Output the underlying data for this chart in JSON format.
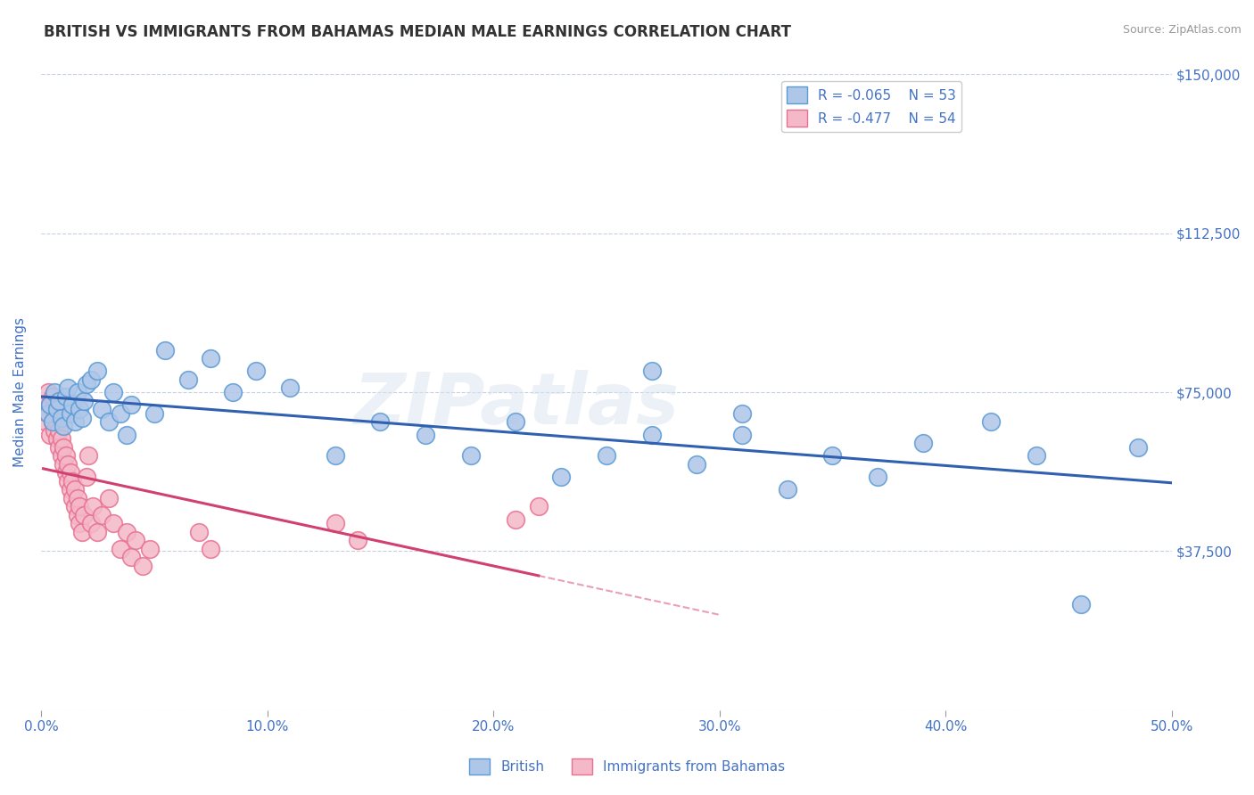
{
  "title": "BRITISH VS IMMIGRANTS FROM BAHAMAS MEDIAN MALE EARNINGS CORRELATION CHART",
  "source": "Source: ZipAtlas.com",
  "ylabel": "Median Male Earnings",
  "xlim": [
    0.0,
    0.5
  ],
  "ylim": [
    0,
    150000
  ],
  "yticks": [
    0,
    37500,
    75000,
    112500,
    150000
  ],
  "ytick_labels": [
    "",
    "$37,500",
    "$75,000",
    "$112,500",
    "$150,000"
  ],
  "xticks": [
    0.0,
    0.1,
    0.2,
    0.3,
    0.4,
    0.5
  ],
  "xtick_labels": [
    "0.0%",
    "10.0%",
    "20.0%",
    "30.0%",
    "40.0%",
    "50.0%"
  ],
  "british_color": "#aec6e8",
  "british_edge_color": "#5b9bd5",
  "bahamas_color": "#f4b8c8",
  "bahamas_edge_color": "#e87090",
  "british_line_color": "#3060b0",
  "bahamas_line_color": "#d04070",
  "british_R": -0.065,
  "british_N": 53,
  "bahamas_R": -0.477,
  "bahamas_N": 54,
  "legend_label_british": "British",
  "legend_label_bahamas": "Immigrants from Bahamas",
  "watermark": "ZIPatlas",
  "title_color": "#333333",
  "axis_label_color": "#4472C4",
  "tick_label_color": "#4472C4",
  "british_x": [
    0.003,
    0.004,
    0.005,
    0.006,
    0.007,
    0.008,
    0.009,
    0.01,
    0.011,
    0.012,
    0.013,
    0.014,
    0.015,
    0.016,
    0.017,
    0.018,
    0.019,
    0.02,
    0.022,
    0.025,
    0.027,
    0.03,
    0.032,
    0.035,
    0.038,
    0.04,
    0.05,
    0.055,
    0.065,
    0.075,
    0.085,
    0.095,
    0.11,
    0.13,
    0.15,
    0.17,
    0.19,
    0.21,
    0.23,
    0.25,
    0.27,
    0.29,
    0.31,
    0.33,
    0.35,
    0.37,
    0.39,
    0.42,
    0.44,
    0.46,
    0.27,
    0.31,
    0.485
  ],
  "british_y": [
    70000,
    72000,
    68000,
    75000,
    71000,
    73000,
    69000,
    67000,
    74000,
    76000,
    70000,
    72000,
    68000,
    75000,
    71000,
    69000,
    73000,
    77000,
    78000,
    80000,
    71000,
    68000,
    75000,
    70000,
    65000,
    72000,
    70000,
    85000,
    78000,
    83000,
    75000,
    80000,
    76000,
    60000,
    68000,
    65000,
    60000,
    68000,
    55000,
    60000,
    65000,
    58000,
    70000,
    52000,
    60000,
    55000,
    63000,
    68000,
    60000,
    25000,
    80000,
    65000,
    62000
  ],
  "bahamas_x": [
    0.001,
    0.002,
    0.003,
    0.003,
    0.004,
    0.004,
    0.005,
    0.005,
    0.006,
    0.006,
    0.007,
    0.007,
    0.008,
    0.008,
    0.009,
    0.009,
    0.01,
    0.01,
    0.011,
    0.011,
    0.012,
    0.012,
    0.013,
    0.013,
    0.014,
    0.014,
    0.015,
    0.015,
    0.016,
    0.016,
    0.017,
    0.017,
    0.018,
    0.019,
    0.02,
    0.021,
    0.022,
    0.023,
    0.025,
    0.027,
    0.03,
    0.032,
    0.035,
    0.038,
    0.04,
    0.042,
    0.045,
    0.048,
    0.07,
    0.075,
    0.13,
    0.14,
    0.21,
    0.22
  ],
  "bahamas_y": [
    72000,
    68000,
    75000,
    70000,
    65000,
    72000,
    68000,
    74000,
    66000,
    70000,
    64000,
    68000,
    62000,
    66000,
    60000,
    64000,
    58000,
    62000,
    56000,
    60000,
    54000,
    58000,
    52000,
    56000,
    50000,
    54000,
    48000,
    52000,
    46000,
    50000,
    44000,
    48000,
    42000,
    46000,
    55000,
    60000,
    44000,
    48000,
    42000,
    46000,
    50000,
    44000,
    38000,
    42000,
    36000,
    40000,
    34000,
    38000,
    42000,
    38000,
    44000,
    40000,
    45000,
    48000
  ]
}
